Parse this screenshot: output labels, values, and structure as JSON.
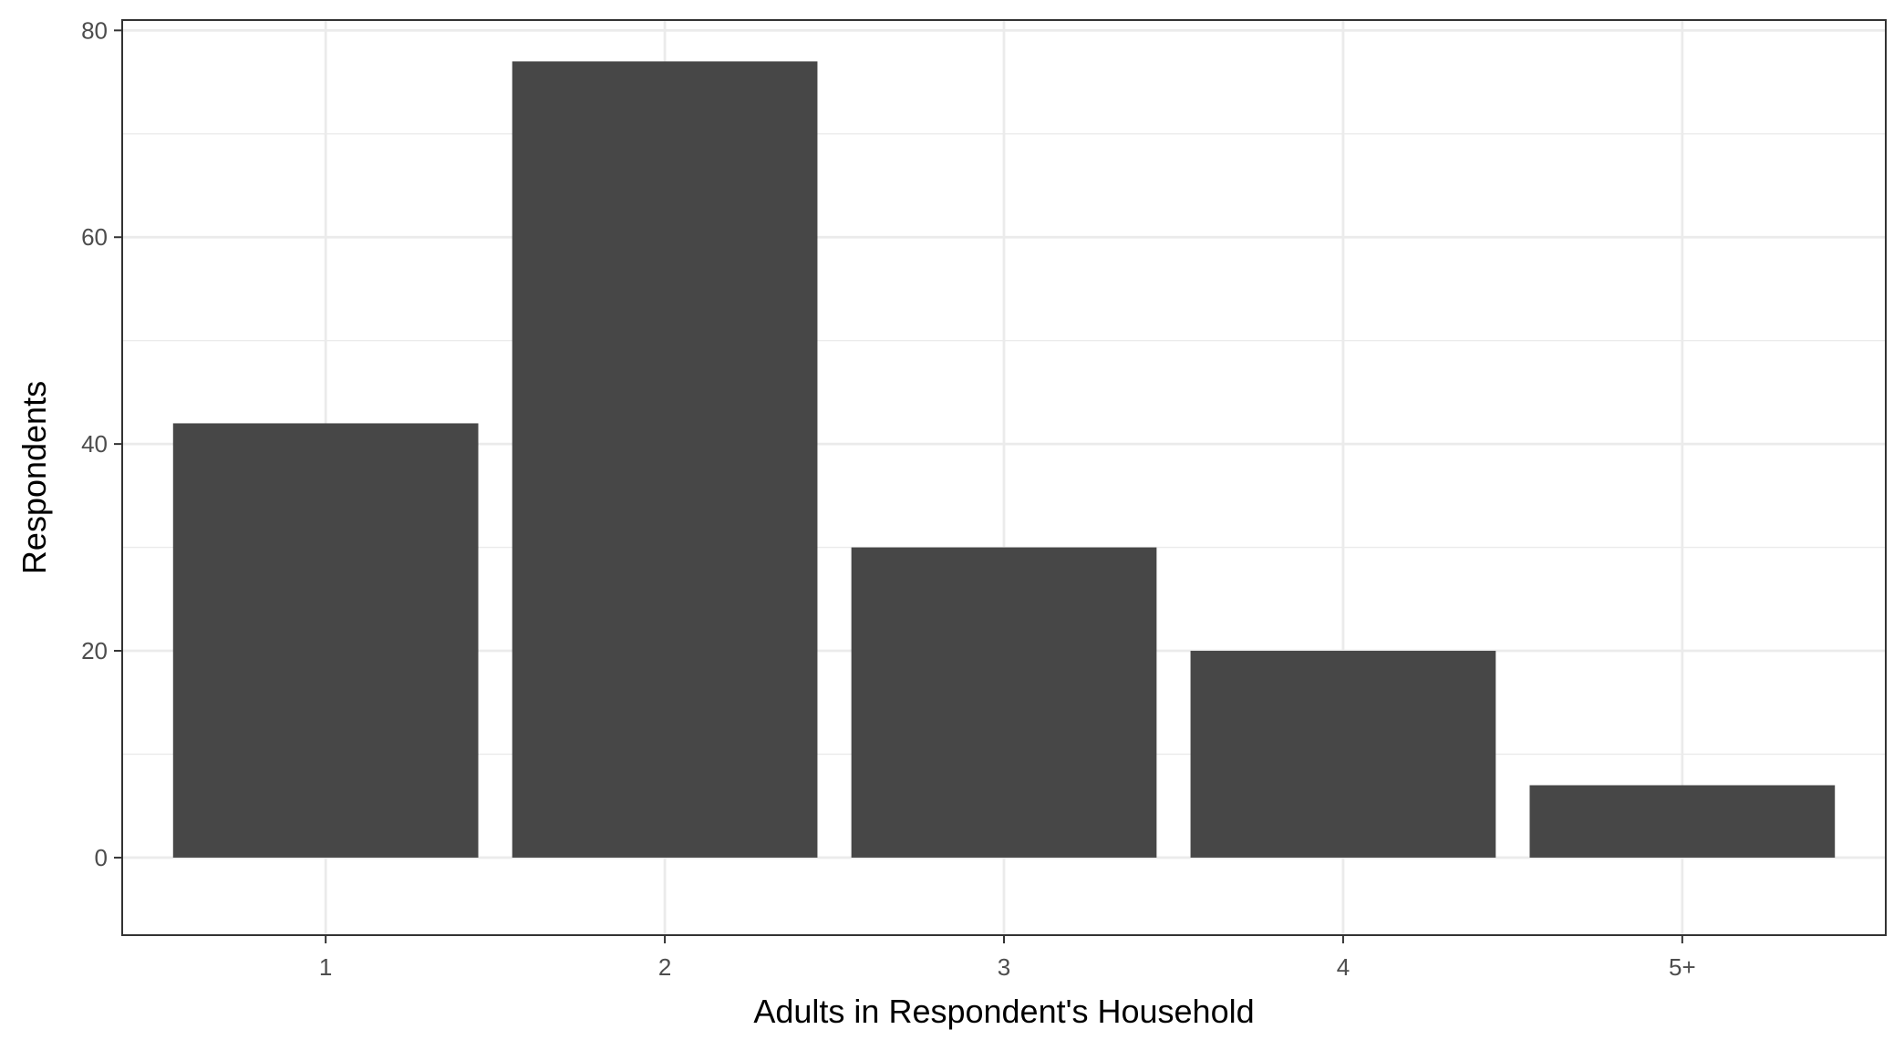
{
  "chart_data": {
    "type": "bar",
    "title": "",
    "xlabel": "Adults in Respondent's Household",
    "ylabel": "Respondents",
    "categories": [
      "1",
      "2",
      "3",
      "4",
      "5+"
    ],
    "values": [
      42,
      77,
      30,
      20,
      7
    ],
    "ylim": [
      -7.5,
      81
    ],
    "yticks": [
      0,
      20,
      40,
      60,
      80
    ],
    "grid": true,
    "legend": "none",
    "bar_color": "#474747",
    "grid_color": "#ebebeb",
    "panel_border_color": "#333333"
  }
}
